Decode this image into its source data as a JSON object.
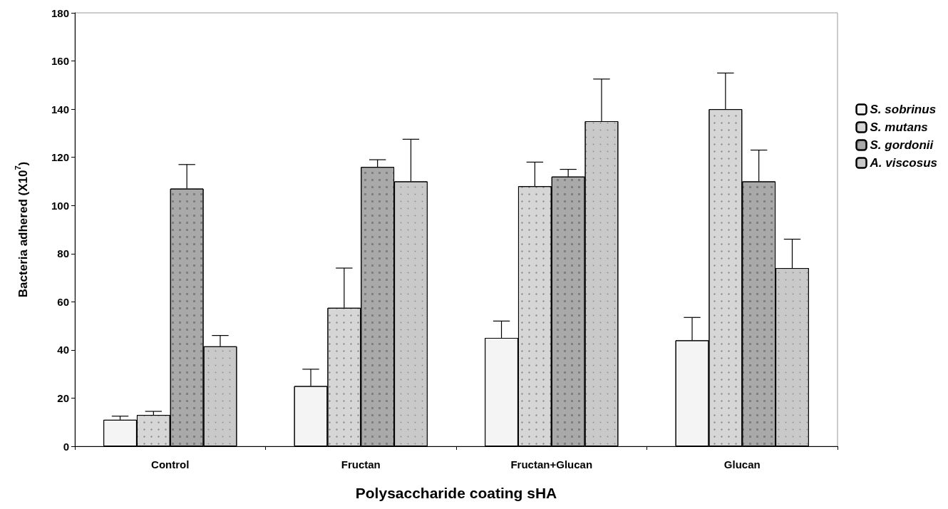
{
  "chart_data": {
    "type": "bar",
    "xlabel": "Polysaccharide coating sHA",
    "ylabel": "Bacteria adhered (X10$^{7}$)",
    "categories": [
      "Control",
      "Fructan",
      "Fructan+Glucan",
      "Glucan"
    ],
    "series": [
      {
        "name": "S. sobrinus",
        "color": "#f4f4f4",
        "values": [
          11,
          25,
          45,
          44
        ],
        "errors": [
          [
            11,
            12.5
          ],
          [
            25,
            32
          ],
          [
            45,
            52
          ],
          [
            44,
            53.5
          ]
        ]
      },
      {
        "name": "S. mutans",
        "color": "#d6d6d6",
        "values": [
          13,
          57.5,
          108,
          140
        ],
        "errors": [
          [
            13,
            14.5
          ],
          [
            57.5,
            74
          ],
          [
            108,
            118
          ],
          [
            140,
            155
          ]
        ]
      },
      {
        "name": "S. gordonii",
        "color": "#a9a9a9",
        "values": [
          107,
          116,
          112,
          110
        ],
        "errors": [
          [
            107,
            117
          ],
          [
            116,
            119
          ],
          [
            112,
            115
          ],
          [
            110,
            123
          ]
        ]
      },
      {
        "name": "A. viscosus",
        "color": "#c9c9c9",
        "values": [
          41.5,
          110,
          135,
          74
        ],
        "errors": [
          [
            41.5,
            46
          ],
          [
            110,
            127.5
          ],
          [
            135,
            152.5
          ],
          [
            74,
            86
          ]
        ]
      }
    ],
    "ylim": [
      0,
      180
    ],
    "yticks": [
      0,
      20,
      40,
      60,
      80,
      100,
      120,
      140,
      160,
      180
    ],
    "grid": false,
    "legend": "right"
  }
}
